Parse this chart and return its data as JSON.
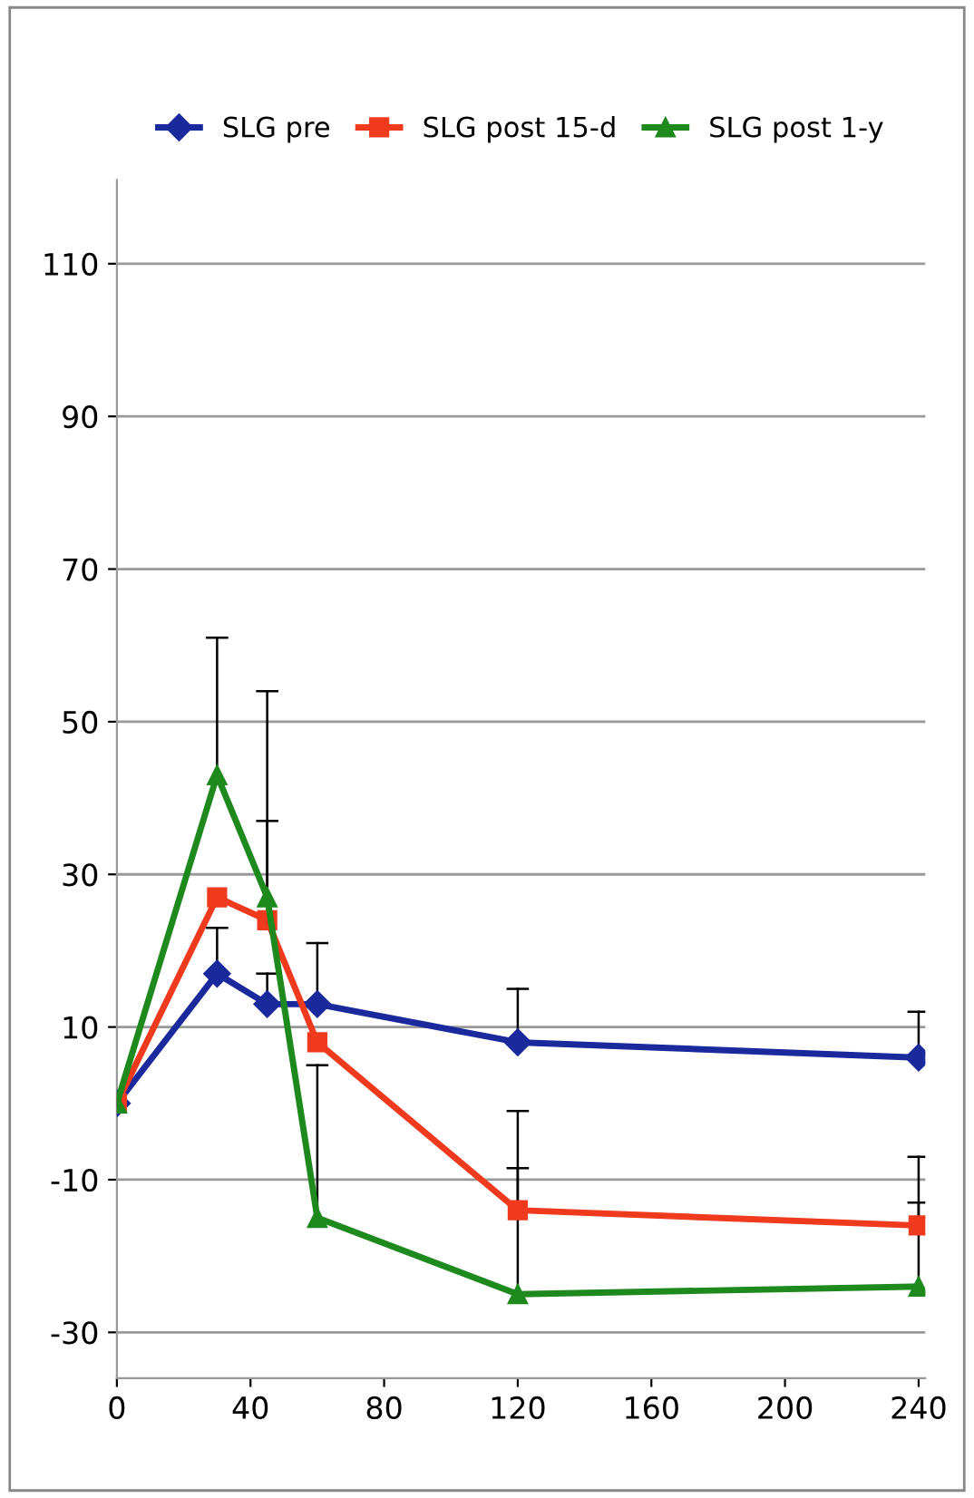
{
  "chart_data": {
    "type": "line",
    "x": [
      0,
      30,
      45,
      60,
      120,
      240
    ],
    "series": [
      {
        "name": "SLG pre",
        "color": "#1a2a9c",
        "marker": "diamond",
        "values": [
          0,
          17,
          13,
          13,
          8,
          6
        ],
        "errors": [
          null,
          [
            17,
            23
          ],
          [
            13,
            17
          ],
          [
            13,
            21
          ],
          [
            8,
            15
          ],
          [
            6,
            12
          ]
        ]
      },
      {
        "name": "SLG post 15-d",
        "color": "#f03a1e",
        "marker": "square",
        "values": [
          0,
          27,
          24,
          8,
          -14,
          -16
        ],
        "errors": [
          null,
          null,
          [
            24,
            37
          ],
          null,
          [
            -14,
            -1
          ],
          [
            -16,
            -7
          ]
        ]
      },
      {
        "name": "SLG post 1-y",
        "color": "#1e8a1e",
        "marker": "triangle",
        "values": [
          0,
          43,
          27,
          -15,
          -25,
          -24
        ],
        "errors": [
          null,
          [
            43,
            61
          ],
          [
            27,
            54
          ],
          [
            -15,
            5
          ],
          [
            -25,
            -8.5
          ],
          [
            -24,
            -13
          ]
        ]
      }
    ],
    "xlim": [
      0,
      242
    ],
    "xticks": [
      0,
      40,
      80,
      120,
      160,
      200,
      240
    ],
    "ylim": [
      -36,
      121
    ],
    "yticks": [
      -30,
      -10,
      10,
      30,
      50,
      70,
      90,
      110
    ],
    "grid": "y",
    "legend": "top"
  }
}
